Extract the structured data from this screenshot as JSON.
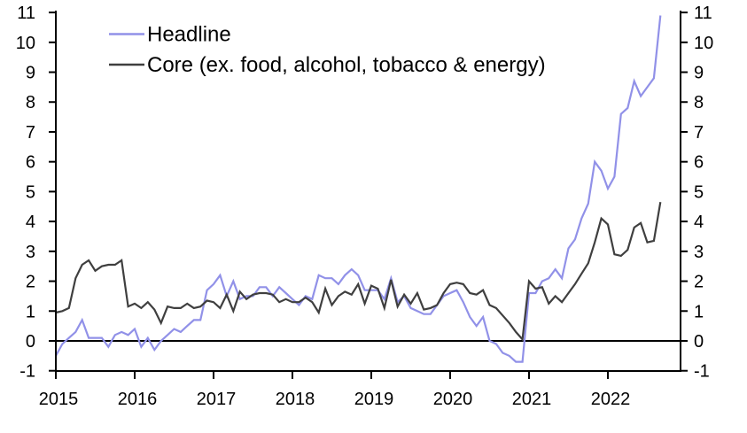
{
  "chart_data": {
    "type": "line",
    "title": "",
    "frequency": "monthly",
    "x_start": "2015-01",
    "x_end": "2022-09",
    "x_tick_labels": [
      "2015",
      "2016",
      "2017",
      "2018",
      "2019",
      "2020",
      "2021",
      "2022"
    ],
    "y_ticks": [
      -1,
      0,
      1,
      2,
      3,
      4,
      5,
      6,
      7,
      8,
      9,
      10,
      11
    ],
    "ylim": [
      -1,
      11
    ],
    "grid": false,
    "zero_line": true,
    "legend_position": "top-left-inside",
    "axis_color": "#000000",
    "series": [
      {
        "name": "Headline",
        "color": "#9191e8",
        "values": [
          -0.5,
          -0.1,
          0.1,
          0.3,
          0.7,
          0.1,
          0.1,
          0.1,
          -0.2,
          0.2,
          0.3,
          0.2,
          0.4,
          -0.2,
          0.1,
          -0.3,
          0.0,
          0.2,
          0.4,
          0.3,
          0.5,
          0.7,
          0.7,
          1.7,
          1.9,
          2.2,
          1.5,
          2.0,
          1.4,
          1.5,
          1.5,
          1.8,
          1.8,
          1.5,
          1.8,
          1.6,
          1.4,
          1.2,
          1.5,
          1.4,
          2.2,
          2.1,
          2.1,
          1.9,
          2.2,
          2.4,
          2.2,
          1.7,
          1.7,
          1.7,
          1.4,
          2.1,
          1.3,
          1.5,
          1.1,
          1.0,
          0.9,
          0.9,
          1.2,
          1.5,
          1.6,
          1.7,
          1.3,
          0.8,
          0.5,
          0.8,
          0.0,
          -0.1,
          -0.4,
          -0.5,
          -0.7,
          -0.7,
          1.6,
          1.6,
          2.0,
          2.1,
          2.4,
          2.1,
          3.1,
          3.4,
          4.1,
          4.6,
          6.0,
          5.7,
          5.1,
          5.5,
          7.6,
          7.8,
          8.7,
          8.2,
          8.5,
          8.8,
          10.9
        ]
      },
      {
        "name": "Core (ex. food, alcohol, tobacco & energy)",
        "color": "#3f3f3f",
        "values": [
          0.95,
          1.0,
          1.1,
          2.1,
          2.55,
          2.7,
          2.35,
          2.5,
          2.55,
          2.55,
          2.7,
          1.15,
          1.25,
          1.1,
          1.3,
          1.05,
          0.6,
          1.15,
          1.1,
          1.1,
          1.25,
          1.1,
          1.15,
          1.35,
          1.3,
          1.1,
          1.55,
          1.0,
          1.65,
          1.4,
          1.55,
          1.6,
          1.6,
          1.55,
          1.3,
          1.4,
          1.3,
          1.3,
          1.45,
          1.3,
          0.95,
          1.75,
          1.2,
          1.5,
          1.65,
          1.55,
          1.9,
          1.25,
          1.85,
          1.75,
          1.1,
          2.05,
          1.15,
          1.55,
          1.25,
          1.6,
          1.05,
          1.1,
          1.2,
          1.6,
          1.9,
          1.95,
          1.9,
          1.6,
          1.55,
          1.7,
          1.2,
          1.1,
          0.85,
          0.6,
          0.3,
          0.05,
          2.0,
          1.75,
          1.8,
          1.25,
          1.5,
          1.3,
          1.6,
          1.9,
          2.25,
          2.6,
          3.3,
          4.1,
          3.9,
          2.9,
          2.85,
          3.05,
          3.8,
          3.95,
          3.3,
          3.35,
          4.65
        ]
      }
    ]
  }
}
